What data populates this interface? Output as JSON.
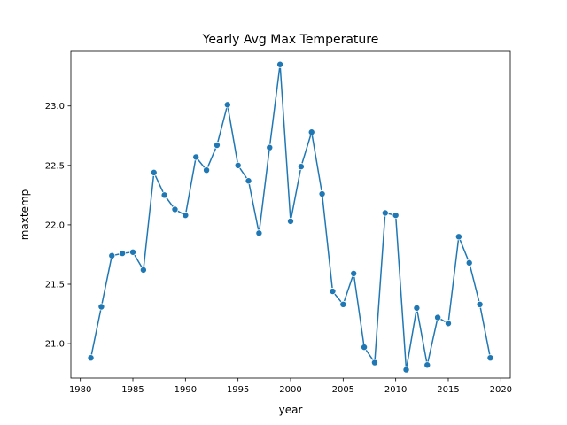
{
  "chart_data": {
    "type": "line",
    "title": "Yearly Avg Max Temperature",
    "xlabel": "year",
    "ylabel": "maxtemp",
    "xlim": [
      1979.1,
      2020.9
    ],
    "ylim": [
      20.71,
      23.46
    ],
    "xticks": [
      1980,
      1985,
      1990,
      1995,
      2000,
      2005,
      2010,
      2015,
      2020
    ],
    "yticks": [
      21.0,
      21.5,
      22.0,
      22.5,
      23.0
    ],
    "ytick_labels": [
      "21.0",
      "21.5",
      "22.0",
      "22.5",
      "23.0"
    ],
    "grid": false,
    "marker": "circle",
    "color": "#1f77b4",
    "x": [
      1981,
      1982,
      1983,
      1984,
      1985,
      1986,
      1987,
      1988,
      1989,
      1990,
      1991,
      1992,
      1993,
      1994,
      1995,
      1996,
      1997,
      1998,
      1999,
      2000,
      2001,
      2002,
      2003,
      2004,
      2005,
      2006,
      2007,
      2008,
      2009,
      2010,
      2011,
      2012,
      2013,
      2014,
      2015,
      2016,
      2017,
      2018,
      2019
    ],
    "y": [
      20.88,
      21.31,
      21.74,
      21.76,
      21.77,
      21.62,
      22.44,
      22.25,
      22.13,
      22.08,
      22.57,
      22.46,
      22.67,
      23.01,
      22.5,
      22.37,
      21.93,
      22.65,
      23.35,
      22.03,
      22.49,
      22.78,
      22.26,
      21.44,
      21.33,
      21.59,
      20.97,
      20.84,
      22.1,
      22.08,
      20.78,
      21.3,
      20.82,
      21.22,
      21.17,
      21.9,
      21.68,
      21.33,
      20.88
    ]
  }
}
